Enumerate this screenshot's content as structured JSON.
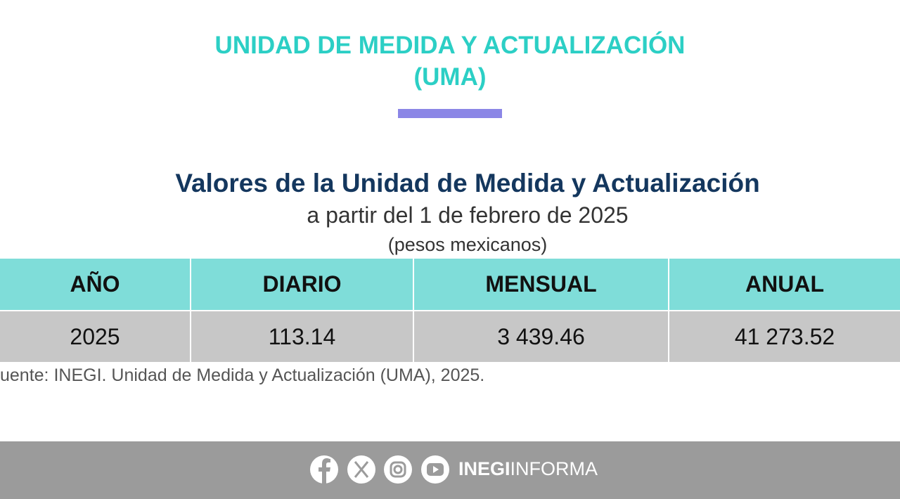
{
  "header": {
    "title": "UNIDAD DE MEDIDA Y ACTUALIZACIÓN",
    "subtitle": "(UMA)"
  },
  "table": {
    "title": "Valores de la Unidad de Medida y Actualización",
    "subtitle": "a partir del 1 de febrero de 2025",
    "unit": "(pesos mexicanos)",
    "columns": [
      "AÑO",
      "DIARIO",
      "MENSUAL",
      "ANUAL"
    ],
    "rows": [
      [
        "2025",
        "113.14",
        "3 439.46",
        "41 273.52"
      ]
    ]
  },
  "source": "uente: INEGI. Unidad de Medida y Actualización (UMA), 2025.",
  "footer": {
    "brand_bold": "INEGI",
    "brand_light": "INFORMA"
  }
}
